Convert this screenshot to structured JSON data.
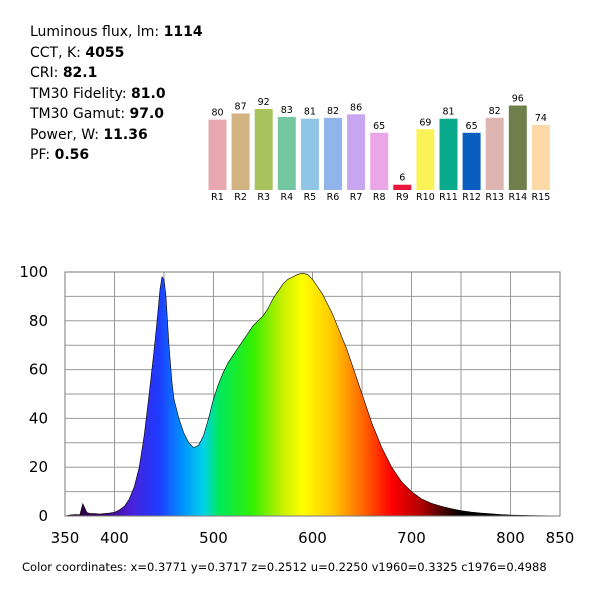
{
  "metrics": [
    {
      "label": "Luminous flux, lm:",
      "value": "1114"
    },
    {
      "label": "CCT, K:",
      "value": "4055"
    },
    {
      "label": "CRI:",
      "value": "82.1"
    },
    {
      "label": "TM30 Fidelity:",
      "value": "81.0"
    },
    {
      "label": "TM30 Gamut:",
      "value": "97.0"
    },
    {
      "label": "Power, W:",
      "value": "11.36"
    },
    {
      "label": "PF:",
      "value": "0.56"
    }
  ],
  "coordinates_text": "Color coordinates: x=0.3771 y=0.3717 z=0.2512 u=0.2250 v1960=0.3325 c1976=0.4988",
  "chart_data": [
    {
      "type": "bar",
      "categories": [
        "R1",
        "R2",
        "R3",
        "R4",
        "R5",
        "R6",
        "R7",
        "R8",
        "R9",
        "R10",
        "R11",
        "R12",
        "R13",
        "R14",
        "R15"
      ],
      "values": [
        80,
        87,
        92,
        83,
        81,
        82,
        86,
        65,
        6,
        69,
        81,
        65,
        82,
        96,
        74
      ],
      "colors": [
        "#e8a8b0",
        "#d2b483",
        "#a8c25e",
        "#74c7a0",
        "#8fc6e8",
        "#91b4ea",
        "#c9a6f0",
        "#eba6e8",
        "#e8153c",
        "#fbf25a",
        "#0aab8c",
        "#0a5ec0",
        "#deb5b1",
        "#6e7f4c",
        "#fcd9a6"
      ],
      "ylim": [
        0,
        100
      ]
    },
    {
      "type": "area",
      "xlim": [
        350,
        850
      ],
      "ylim": [
        0,
        100
      ],
      "xticks": [
        350,
        400,
        500,
        600,
        700,
        800,
        850
      ],
      "yticks": [
        0,
        20,
        40,
        60,
        80,
        100
      ],
      "grid": true,
      "x": [
        350,
        355,
        360,
        365,
        368,
        372,
        375,
        380,
        385,
        390,
        395,
        400,
        405,
        410,
        415,
        420,
        425,
        430,
        435,
        440,
        443,
        446,
        448,
        450,
        452,
        455,
        458,
        460,
        465,
        470,
        475,
        480,
        485,
        490,
        495,
        500,
        505,
        510,
        515,
        520,
        525,
        530,
        535,
        540,
        545,
        550,
        555,
        560,
        565,
        570,
        575,
        580,
        585,
        590,
        595,
        600,
        605,
        610,
        615,
        620,
        625,
        630,
        635,
        640,
        645,
        650,
        655,
        660,
        665,
        670,
        675,
        680,
        685,
        690,
        695,
        700,
        710,
        720,
        730,
        740,
        750,
        760,
        770,
        780,
        790,
        800,
        810,
        820,
        830,
        840,
        850
      ],
      "y": [
        0,
        0.4,
        0.6,
        0.5,
        5,
        1.5,
        1,
        1,
        0.8,
        1,
        1.2,
        1.5,
        2.5,
        4,
        7,
        12,
        20,
        33,
        50,
        68,
        80,
        93,
        98,
        97,
        90,
        70,
        55,
        48,
        40,
        34,
        30,
        28,
        29,
        33,
        40,
        48,
        54,
        59,
        63,
        66,
        69,
        72,
        75,
        78,
        80,
        82,
        85,
        89,
        92,
        95,
        97,
        98,
        99,
        99.5,
        99,
        97,
        94,
        91,
        87,
        83,
        78,
        73,
        68,
        62,
        56,
        50,
        44,
        38,
        33,
        28,
        24,
        20,
        17,
        14,
        12,
        10,
        7,
        5.2,
        4,
        3,
        2.2,
        1.6,
        1.2,
        0.9,
        0.6,
        0.4,
        0.3,
        0.2,
        0.12,
        0.06,
        0
      ]
    }
  ]
}
